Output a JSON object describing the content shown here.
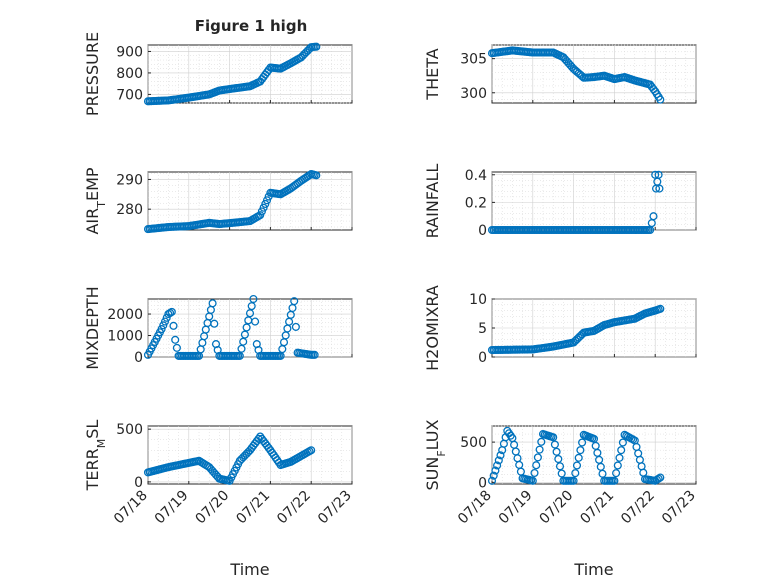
{
  "figure": {
    "title": "Figure 1 high"
  },
  "colors": {
    "marker": "#0072BD",
    "axis": "#262626",
    "grid": "#d0d0d0"
  },
  "chart_data": [
    {
      "type": "scatter",
      "ylabel": "PRESSURE",
      "xlim": [
        "07/18",
        "07/23"
      ],
      "ylim": [
        660,
        930
      ],
      "yticks": [
        700,
        800,
        900
      ],
      "xticklabels": [],
      "grid": true,
      "series": [
        {
          "points": [
            [
              "07/18 00:00",
              668
            ],
            [
              "07/18 12:00",
              672
            ],
            [
              "07/19 00:00",
              685
            ],
            [
              "07/19 12:00",
              700
            ],
            [
              "07/19 18:00",
              718
            ],
            [
              "07/20 00:00",
              725
            ],
            [
              "07/20 12:00",
              738
            ],
            [
              "07/20 18:00",
              760
            ],
            [
              "07/21 00:00",
              825
            ],
            [
              "07/21 06:00",
              820
            ],
            [
              "07/21 12:00",
              845
            ],
            [
              "07/21 18:00",
              872
            ],
            [
              "07/22 00:00",
              920
            ],
            [
              "07/22 03:00",
              922
            ]
          ]
        }
      ]
    },
    {
      "type": "scatter",
      "ylabel": "THETA",
      "xlim": [
        "07/18",
        "07/23"
      ],
      "ylim": [
        298.5,
        307
      ],
      "yticks": [
        300,
        305
      ],
      "xticklabels": [],
      "grid": true,
      "series": [
        {
          "points": [
            [
              "07/18 00:00",
              305.8
            ],
            [
              "07/18 06:00",
              306.0
            ],
            [
              "07/18 12:00",
              306.2
            ],
            [
              "07/19 00:00",
              305.9
            ],
            [
              "07/19 12:00",
              305.9
            ],
            [
              "07/19 18:00",
              305.2
            ],
            [
              "07/20 00:00",
              303.5
            ],
            [
              "07/20 06:00",
              302.2
            ],
            [
              "07/20 12:00",
              302.3
            ],
            [
              "07/20 18:00",
              302.5
            ],
            [
              "07/21 00:00",
              302.0
            ],
            [
              "07/21 06:00",
              302.3
            ],
            [
              "07/21 12:00",
              301.8
            ],
            [
              "07/21 18:00",
              301.4
            ],
            [
              "07/21 21:00",
              301.2
            ],
            [
              "07/22 00:00",
              300.2
            ],
            [
              "07/22 03:00",
              299.0
            ]
          ]
        }
      ]
    },
    {
      "type": "scatter",
      "ylabel": "AIR",
      "ylabel_sub": "T",
      "ylabel_rest": "EMP",
      "xlim": [
        "07/18",
        "07/23"
      ],
      "ylim": [
        273,
        292.5
      ],
      "yticks": [
        280,
        290
      ],
      "xticklabels": [],
      "grid": true,
      "series": [
        {
          "points": [
            [
              "07/18 00:00",
              273.3
            ],
            [
              "07/18 12:00",
              274.0
            ],
            [
              "07/19 00:00",
              274.3
            ],
            [
              "07/19 12:00",
              275.4
            ],
            [
              "07/19 18:00",
              275.0
            ],
            [
              "07/20 00:00",
              275.3
            ],
            [
              "07/20 12:00",
              276.0
            ],
            [
              "07/20 18:00",
              278.0
            ],
            [
              "07/21 00:00",
              285.5
            ],
            [
              "07/21 06:00",
              285.0
            ],
            [
              "07/21 12:00",
              287.0
            ],
            [
              "07/21 18:00",
              289.5
            ],
            [
              "07/22 00:00",
              291.8
            ],
            [
              "07/22 03:00",
              291.4
            ]
          ]
        }
      ]
    },
    {
      "type": "scatter",
      "ylabel": "RAINFALL",
      "xlim": [
        "07/18",
        "07/23"
      ],
      "ylim": [
        0,
        0.42
      ],
      "yticks": [
        0,
        0.2,
        0.4
      ],
      "xticklabels": [],
      "grid": true,
      "series": [
        {
          "points": [
            [
              "07/18 00:00",
              0
            ],
            [
              "07/21 21:00",
              0
            ],
            [
              "07/21 23:00",
              0.1
            ],
            [
              "07/22 00:00",
              0.4
            ],
            [
              "07/22 00:30",
              0.3
            ],
            [
              "07/22 02:00",
              0.4
            ],
            [
              "07/22 02:30",
              0.3
            ]
          ]
        }
      ]
    },
    {
      "type": "scatter",
      "ylabel": "MIXDEPTH",
      "xlim": [
        "07/18",
        "07/23"
      ],
      "ylim": [
        0,
        2700
      ],
      "yticks": [
        0,
        1000,
        2000
      ],
      "xticklabels": [],
      "grid": true,
      "series": [
        {
          "points": [
            [
              "07/18 00:00",
              100
            ],
            [
              "07/18 08:00",
              1300
            ],
            [
              "07/18 12:00",
              2000
            ],
            [
              "07/18 14:00",
              2100
            ],
            [
              "07/18 16:00",
              800
            ],
            [
              "07/18 18:00",
              50
            ],
            [
              "07/19 06:00",
              50
            ],
            [
              "07/19 14:00",
              2500
            ],
            [
              "07/19 16:00",
              600
            ],
            [
              "07/19 18:00",
              50
            ],
            [
              "07/20 06:00",
              50
            ],
            [
              "07/20 14:00",
              2700
            ],
            [
              "07/20 16:00",
              600
            ],
            [
              "07/20 18:00",
              50
            ],
            [
              "07/21 06:00",
              50
            ],
            [
              "07/21 14:00",
              2600
            ],
            [
              "07/21 16:00",
              200
            ],
            [
              "07/22 00:00",
              100
            ],
            [
              "07/22 02:00",
              100
            ]
          ]
        }
      ]
    },
    {
      "type": "scatter",
      "ylabel": "H2OMIXRA",
      "xlim": [
        "07/18",
        "07/23"
      ],
      "ylim": [
        0,
        10
      ],
      "yticks": [
        0,
        5,
        10
      ],
      "xticklabels": [],
      "grid": true,
      "series": [
        {
          "points": [
            [
              "07/18 00:00",
              1.2
            ],
            [
              "07/19 00:00",
              1.3
            ],
            [
              "07/19 12:00",
              1.8
            ],
            [
              "07/20 00:00",
              2.5
            ],
            [
              "07/20 06:00",
              4.2
            ],
            [
              "07/20 12:00",
              4.5
            ],
            [
              "07/20 18:00",
              5.5
            ],
            [
              "07/21 00:00",
              6.0
            ],
            [
              "07/21 12:00",
              6.6
            ],
            [
              "07/21 18:00",
              7.5
            ],
            [
              "07/22 00:00",
              8.0
            ],
            [
              "07/22 03:00",
              8.3
            ]
          ]
        }
      ]
    },
    {
      "type": "scatter",
      "ylabel": "TERR",
      "ylabel_sub": "M",
      "ylabel_rest": "SL",
      "xlabel": "Time",
      "xlim": [
        "07/18",
        "07/23"
      ],
      "ylim": [
        -20,
        530
      ],
      "yticks": [
        0,
        500
      ],
      "xticklabels": [
        "07/18",
        "07/19",
        "07/20",
        "07/21",
        "07/22",
        "07/23"
      ],
      "grid": true,
      "series": [
        {
          "points": [
            [
              "07/18 00:00",
              90
            ],
            [
              "07/18 12:00",
              140
            ],
            [
              "07/19 00:00",
              180
            ],
            [
              "07/19 06:00",
              200
            ],
            [
              "07/19 12:00",
              140
            ],
            [
              "07/19 18:00",
              30
            ],
            [
              "07/20 00:00",
              10
            ],
            [
              "07/20 06:00",
              200
            ],
            [
              "07/20 12:00",
              300
            ],
            [
              "07/20 18:00",
              430
            ],
            [
              "07/21 00:00",
              300
            ],
            [
              "07/21 06:00",
              160
            ],
            [
              "07/21 12:00",
              190
            ],
            [
              "07/22 00:00",
              300
            ]
          ]
        }
      ]
    },
    {
      "type": "scatter",
      "ylabel": "SUN",
      "ylabel_sub": "F",
      "ylabel_rest": "LUX",
      "xlabel": "Time",
      "xlim": [
        "07/18",
        "07/23"
      ],
      "ylim": [
        -20,
        700
      ],
      "yticks": [
        0,
        500
      ],
      "xticklabels": [
        "07/18",
        "07/19",
        "07/20",
        "07/21",
        "07/22",
        "07/23"
      ],
      "grid": true,
      "series": [
        {
          "points": [
            [
              "07/18 00:00",
              20
            ],
            [
              "07/18 06:00",
              400
            ],
            [
              "07/18 09:00",
              640
            ],
            [
              "07/18 12:00",
              550
            ],
            [
              "07/18 18:00",
              50
            ],
            [
              "07/19 00:00",
              20
            ],
            [
              "07/19 06:00",
              600
            ],
            [
              "07/19 12:00",
              560
            ],
            [
              "07/19 18:00",
              20
            ],
            [
              "07/20 00:00",
              20
            ],
            [
              "07/20 06:00",
              590
            ],
            [
              "07/20 12:00",
              540
            ],
            [
              "07/20 18:00",
              20
            ],
            [
              "07/21 00:00",
              20
            ],
            [
              "07/21 06:00",
              590
            ],
            [
              "07/21 12:00",
              520
            ],
            [
              "07/21 18:00",
              40
            ],
            [
              "07/22 00:00",
              20
            ],
            [
              "07/22 03:00",
              60
            ]
          ]
        }
      ]
    }
  ]
}
